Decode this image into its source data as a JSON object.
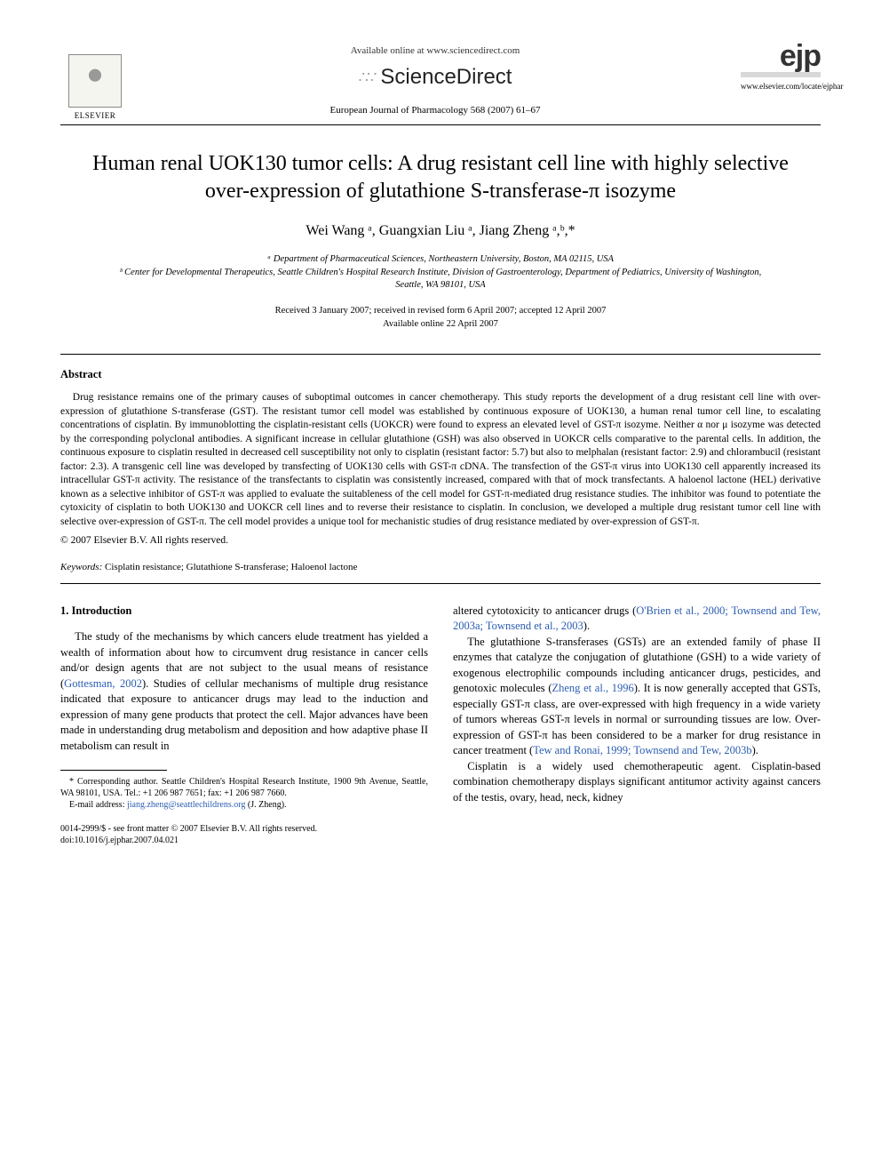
{
  "header": {
    "available_online": "Available online at www.sciencedirect.com",
    "sciencedirect": "ScienceDirect",
    "journal_ref": "European Journal of Pharmacology 568 (2007) 61–67",
    "elsevier_label": "ELSEVIER",
    "ejp_mark": "ejp",
    "locate_url": "www.elsevier.com/locate/ejphar"
  },
  "title": "Human renal UOK130 tumor cells: A drug resistant cell line with highly selective over-expression of glutathione S-transferase-π isozyme",
  "authors_html": "Wei Wang ᵃ, Guangxian Liu ᵃ, Jiang Zheng ᵃ,ᵇ,*",
  "affiliations": {
    "a": "ᵃ Department of Pharmaceutical Sciences, Northeastern University, Boston, MA 02115, USA",
    "b": "ᵇ Center for Developmental Therapeutics, Seattle Children's Hospital Research Institute, Division of Gastroenterology, Department of Pediatrics, University of Washington, Seattle, WA 98101, USA"
  },
  "dates": {
    "received": "Received 3 January 2007; received in revised form 6 April 2007; accepted 12 April 2007",
    "online": "Available online 22 April 2007"
  },
  "abstract": {
    "heading": "Abstract",
    "body": "Drug resistance remains one of the primary causes of suboptimal outcomes in cancer chemotherapy. This study reports the development of a drug resistant cell line with over-expression of glutathione S-transferase (GST). The resistant tumor cell model was established by continuous exposure of UOK130, a human renal tumor cell line, to escalating concentrations of cisplatin. By immunoblotting the cisplatin-resistant cells (UOKCR) were found to express an elevated level of GST-π isozyme. Neither α nor μ isozyme was detected by the corresponding polyclonal antibodies. A significant increase in cellular glutathione (GSH) was also observed in UOKCR cells comparative to the parental cells. In addition, the continuous exposure to cisplatin resulted in decreased cell susceptibility not only to cisplatin (resistant factor: 5.7) but also to melphalan (resistant factor: 2.9) and chlorambucil (resistant factor: 2.3). A transgenic cell line was developed by transfecting of UOK130 cells with GST-π cDNA. The transfection of the GST-π virus into UOK130 cell apparently increased its intracellular GST-π activity. The resistance of the transfectants to cisplatin was consistently increased, compared with that of mock transfectants. A haloenol lactone (HEL) derivative known as a selective inhibitor of GST-π was applied to evaluate the suitableness of the cell model for GST-π-mediated drug resistance studies. The inhibitor was found to potentiate the cytoxicity of cisplatin to both UOK130 and UOKCR cell lines and to reverse their resistance to cisplatin. In conclusion, we developed a multiple drug resistant tumor cell line with selective over-expression of GST-π. The cell model provides a unique tool for mechanistic studies of drug resistance mediated by over-expression of GST-π.",
    "copyright": "© 2007 Elsevier B.V. All rights reserved."
  },
  "keywords": {
    "label": "Keywords:",
    "value": "Cisplatin resistance; Glutathione S-transferase; Haloenol lactone"
  },
  "introduction": {
    "heading": "1. Introduction",
    "col1_p1_pre": "The study of the mechanisms by which cancers elude treatment has yielded a wealth of information about how to circumvent drug resistance in cancer cells and/or design agents that are not subject to the usual means of resistance (",
    "col1_cite1": "Gottesman, 2002",
    "col1_p1_post": "). Studies of cellular mechanisms of multiple drug resistance indicated that exposure to anticancer drugs may lead to the induction and expression of many gene products that protect the cell. Major advances have been made in understanding drug metabolism and deposition and how adaptive phase II metabolism can result in",
    "col2_p1_pre": "altered cytotoxicity to anticancer drugs (",
    "col2_cite1": "O'Brien et al., 2000; Townsend and Tew, 2003a; Townsend et al., 2003",
    "col2_p1_post": ").",
    "col2_p2_pre": "The glutathione S-transferases (GSTs) are an extended family of phase II enzymes that catalyze the conjugation of glutathione (GSH) to a wide variety of exogenous electrophilic compounds including anticancer drugs, pesticides, and genotoxic molecules (",
    "col2_cite2": "Zheng et al., 1996",
    "col2_p2_mid": "). It is now generally accepted that GSTs, especially GST-π class, are over-expressed with high frequency in a wide variety of tumors whereas GST-π levels in normal or surrounding tissues are low. Over-expression of GST-π has been considered to be a marker for drug resistance in cancer treatment (",
    "col2_cite3": "Tew and Ronai, 1999; Townsend and Tew, 2003b",
    "col2_p2_post": ").",
    "col2_p3": "Cisplatin is a widely used chemotherapeutic agent. Cisplatin-based combination chemotherapy displays significant antitumor activity against cancers of the testis, ovary, head, neck, kidney"
  },
  "footnote": {
    "corresponding": "* Corresponding author. Seattle Children's Hospital Research Institute, 1900 9th Avenue, Seattle, WA 98101, USA. Tel.: +1 206 987 7651; fax: +1 206 987 7660.",
    "email_label": "E-mail address:",
    "email": "jiang.zheng@seattlechildrens.org",
    "email_person": "(J. Zheng)."
  },
  "bottom": {
    "issn": "0014-2999/$ - see front matter © 2007 Elsevier B.V. All rights reserved.",
    "doi": "doi:10.1016/j.ejphar.2007.04.021"
  },
  "colors": {
    "text": "#000000",
    "link": "#2a5db0",
    "background": "#ffffff"
  }
}
